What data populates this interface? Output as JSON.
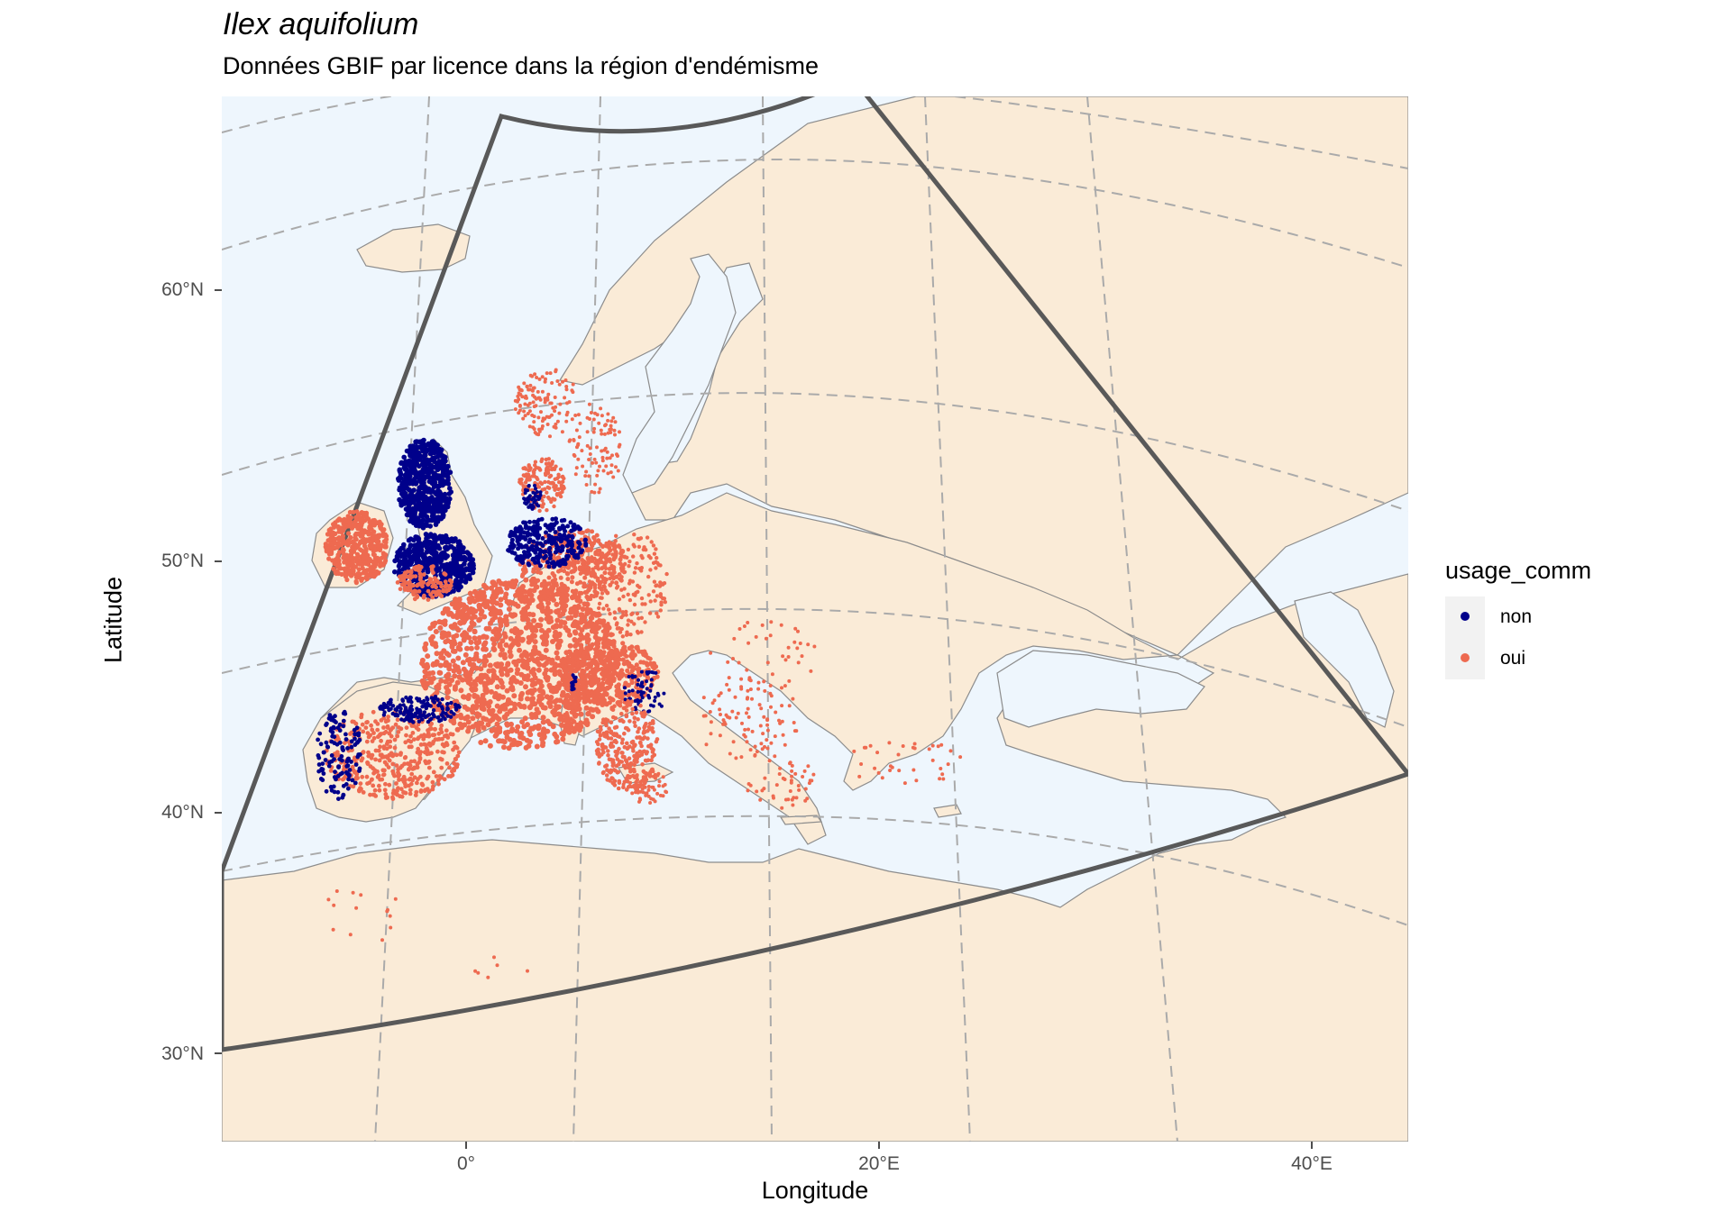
{
  "title": "Ilex aquifolium",
  "subtitle": "Données GBIF par licence dans la région d'endémisme",
  "axes": {
    "x_label": "Longitude",
    "y_label": "Latitude",
    "x_ticks": [
      "0°",
      "20°E",
      "40°E"
    ],
    "y_ticks": [
      "60°N",
      "50°N",
      "40°N",
      "30°N"
    ]
  },
  "legend": {
    "title": "usage_comm",
    "items": [
      {
        "label": "non",
        "color": "#00008b"
      },
      {
        "label": "oui",
        "color": "#ee6a50"
      }
    ]
  },
  "colors": {
    "sea": "#eef6fd",
    "land": "#faebd7",
    "border": "#8c8c8c",
    "graticule": "#aaaaaa",
    "region_outline": "#595959"
  },
  "map": {
    "type": "occurrence map",
    "species": "Ilex aquifolium",
    "extent": {
      "lon": [
        -12,
        45
      ],
      "lat": [
        27,
        67
      ]
    },
    "observed_regions": [
      {
        "region": "British Isles",
        "dominant_category": "non"
      },
      {
        "region": "Ireland",
        "dominant_category": "oui"
      },
      {
        "region": "France",
        "dominant_category": "oui"
      },
      {
        "region": "Benelux",
        "dominant_category": "non"
      },
      {
        "region": "Germany",
        "dominant_category": "oui"
      },
      {
        "region": "Iberian Peninsula",
        "dominant_category": "oui"
      },
      {
        "region": "Italy",
        "dominant_category": "oui"
      },
      {
        "region": "Scandinavia",
        "dominant_category": "oui"
      },
      {
        "region": "Balkans",
        "dominant_category": "oui"
      },
      {
        "region": "Anatolia",
        "dominant_category": "oui"
      }
    ]
  }
}
